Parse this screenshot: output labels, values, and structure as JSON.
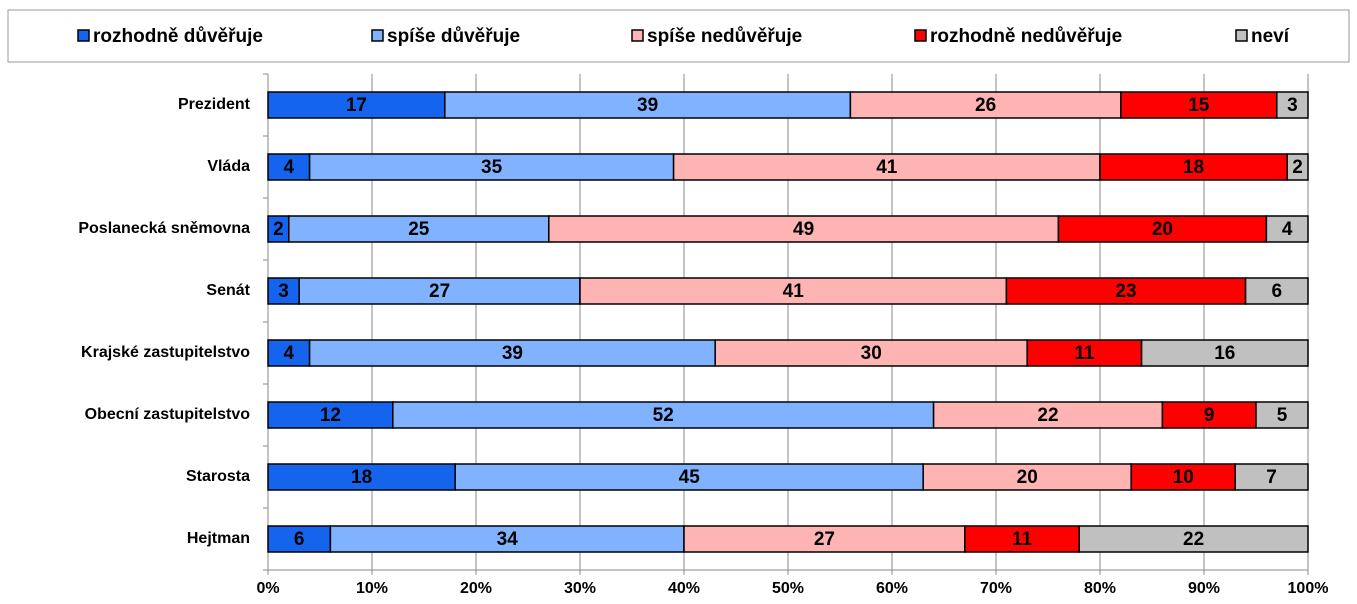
{
  "chart_data": {
    "type": "bar",
    "orientation": "horizontal",
    "stacked": true,
    "grid": true,
    "categories": [
      "Prezident",
      "Vláda",
      "Poslanecká sněmovna",
      "Senát",
      "Krajské zastupitelstvo",
      "Obecní zastupitelstvo",
      "Starosta",
      "Hejtman"
    ],
    "series": [
      {
        "name": "rozhodně důvěřuje",
        "color": "#1464ee",
        "values": [
          17,
          4,
          2,
          3,
          4,
          12,
          18,
          6
        ]
      },
      {
        "name": "spíše důvěřuje",
        "color": "#80b2ff",
        "values": [
          39,
          35,
          25,
          27,
          39,
          52,
          45,
          34
        ]
      },
      {
        "name": "spíše nedůvěřuje",
        "color": "#ffb4b4",
        "values": [
          26,
          41,
          49,
          41,
          30,
          22,
          20,
          27
        ]
      },
      {
        "name": "rozhodně nedůvěřuje",
        "color": "#ff0000",
        "values": [
          15,
          18,
          20,
          23,
          11,
          9,
          10,
          11
        ]
      },
      {
        "name": "neví",
        "color": "#c0c0c0",
        "values": [
          3,
          2,
          4,
          6,
          16,
          5,
          7,
          22
        ]
      }
    ],
    "xlim": [
      0,
      100
    ],
    "xticks": [
      {
        "value": 0,
        "label": "0%"
      },
      {
        "value": 10,
        "label": "10%"
      },
      {
        "value": 20,
        "label": "20%"
      },
      {
        "value": 30,
        "label": "30%"
      },
      {
        "value": 40,
        "label": "40%"
      },
      {
        "value": 50,
        "label": "50%"
      },
      {
        "value": 60,
        "label": "60%"
      },
      {
        "value": 70,
        "label": "70%"
      },
      {
        "value": 80,
        "label": "80%"
      },
      {
        "value": 90,
        "label": "90%"
      },
      {
        "value": 100,
        "label": "100%"
      }
    ]
  }
}
